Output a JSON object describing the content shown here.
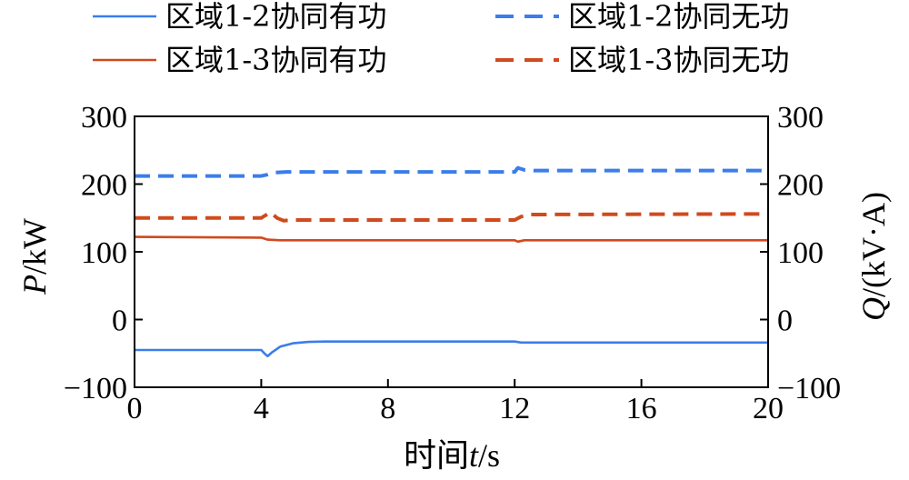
{
  "chart_data": {
    "type": "line",
    "xlabel_parts": {
      "pre": "时间",
      "var": "t",
      "post": "/s"
    },
    "ylabel_left_parts": {
      "var": "P",
      "post": "/kW"
    },
    "ylabel_right_parts": {
      "var": "Q",
      "post": "/(kV·A)"
    },
    "xlim": [
      0,
      20
    ],
    "ylim": [
      -100,
      300
    ],
    "xticks": [
      0,
      4,
      8,
      12,
      16,
      20
    ],
    "yticks": [
      -100,
      0,
      100,
      200,
      300
    ],
    "ytick_labels": [
      "−100",
      "0",
      "100",
      "200",
      "300"
    ],
    "grid": false,
    "legend_position": "top",
    "series": [
      {
        "name": "区域1-2协同有功",
        "axis": "left",
        "style": "solid",
        "color": "#3b7dea",
        "points": [
          [
            0,
            -45
          ],
          [
            4.0,
            -45
          ],
          [
            4.1,
            -50
          ],
          [
            4.2,
            -54
          ],
          [
            4.35,
            -48
          ],
          [
            4.6,
            -40
          ],
          [
            5.0,
            -35
          ],
          [
            5.5,
            -33
          ],
          [
            6,
            -32.5
          ],
          [
            12.0,
            -32.5
          ],
          [
            12.2,
            -34
          ],
          [
            12.5,
            -34
          ],
          [
            20,
            -34
          ]
        ]
      },
      {
        "name": "区域1-2协同无功",
        "axis": "right",
        "style": "dashed",
        "color": "#3b7dea",
        "points": [
          [
            0,
            212
          ],
          [
            4.0,
            212
          ],
          [
            4.2,
            214
          ],
          [
            4.4,
            217
          ],
          [
            4.8,
            218
          ],
          [
            12.0,
            218
          ],
          [
            12.1,
            224
          ],
          [
            12.3,
            221
          ],
          [
            12.6,
            220
          ],
          [
            20,
            220
          ]
        ]
      },
      {
        "name": "区域1-3协同有功",
        "axis": "left",
        "style": "solid",
        "color": "#d04a1e",
        "points": [
          [
            0,
            122
          ],
          [
            4.0,
            121
          ],
          [
            4.2,
            118
          ],
          [
            4.6,
            117
          ],
          [
            12.0,
            117
          ],
          [
            12.1,
            115
          ],
          [
            12.3,
            117
          ],
          [
            20,
            117
          ]
        ]
      },
      {
        "name": "区域1-3协同无功",
        "axis": "right",
        "style": "dashed",
        "color": "#d04a1e",
        "points": [
          [
            0,
            150
          ],
          [
            4.0,
            150
          ],
          [
            4.1,
            153
          ],
          [
            4.3,
            158
          ],
          [
            4.5,
            150
          ],
          [
            4.7,
            146
          ],
          [
            5.0,
            147
          ],
          [
            12.0,
            147
          ],
          [
            12.2,
            152
          ],
          [
            12.5,
            155
          ],
          [
            20,
            156
          ]
        ]
      }
    ]
  }
}
